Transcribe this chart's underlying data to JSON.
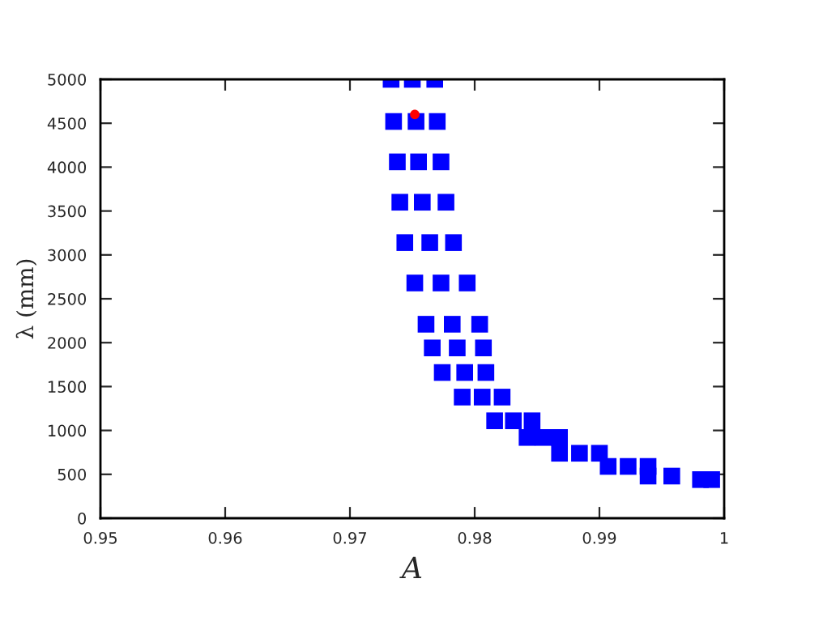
{
  "chart_data": {
    "type": "scatter",
    "xlabel": "A",
    "ylabel": "λ (mm)",
    "xlim": [
      0.95,
      1
    ],
    "xticks": [
      0.95,
      0.96,
      0.97,
      0.98,
      0.99,
      1
    ],
    "ylim": [
      0,
      5000
    ],
    "yticks": [
      0,
      500,
      1000,
      1500,
      2000,
      2500,
      3000,
      3500,
      4000,
      4500,
      5000
    ],
    "grid": false,
    "legend": false,
    "marker": "square",
    "series": [
      {
        "color": "#0000ff",
        "x": [
          0.9733,
          0.975,
          0.9768,
          0.9735,
          0.9753,
          0.977,
          0.9738,
          0.9755,
          0.9773,
          0.974,
          0.9758,
          0.9777,
          0.9744,
          0.9764,
          0.9783,
          0.9752,
          0.9773,
          0.9794,
          0.9761,
          0.9782,
          0.9804,
          0.9766,
          0.9786,
          0.9807,
          0.9774,
          0.9792,
          0.9809,
          0.979,
          0.9806,
          0.9822,
          0.9816,
          0.9831,
          0.9846,
          0.9842,
          0.9855,
          0.9868,
          0.9868,
          0.9884,
          0.99,
          0.9907,
          0.9923,
          0.9939,
          0.9939,
          0.9958,
          0.9981,
          0.999
        ],
        "values": [
          5000,
          5000,
          5000,
          4520,
          4520,
          4520,
          4060,
          4060,
          4060,
          3600,
          3600,
          3600,
          3140,
          3140,
          3140,
          2680,
          2680,
          2680,
          2210,
          2210,
          2210,
          1940,
          1940,
          1940,
          1660,
          1660,
          1660,
          1380,
          1380,
          1380,
          1110,
          1110,
          1110,
          920,
          920,
          920,
          740,
          740,
          740,
          590,
          590,
          590,
          480,
          480,
          440,
          440
        ]
      },
      {
        "color": "#ff0000",
        "marker": "circle",
        "x": [
          0.9752
        ],
        "values": [
          4600
        ]
      }
    ]
  }
}
